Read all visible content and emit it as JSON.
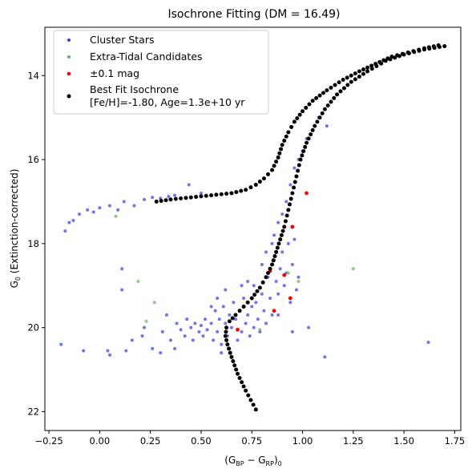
{
  "chart_data": {
    "type": "scatter",
    "title": "Isochrone Fitting (DM = 16.49)",
    "xlabel": {
      "base": "(G",
      "sub1": "BP",
      "mid": " − G",
      "sub2": "RP",
      "close": ")",
      "sub3": "0"
    },
    "ylabel": {
      "base": "G",
      "sub": "0",
      "rest": " (Extinction-corrected)"
    },
    "xlim": [
      -0.27,
      1.78
    ],
    "ylim": [
      22.45,
      12.85
    ],
    "y_inverted": true,
    "xticks": [
      -0.25,
      0.0,
      0.25,
      0.5,
      0.75,
      1.0,
      1.25,
      1.5,
      1.75
    ],
    "xtick_labels": [
      "−0.25",
      "0.00",
      "0.25",
      "0.50",
      "0.75",
      "1.00",
      "1.25",
      "1.50",
      "1.75"
    ],
    "yticks": [
      14,
      16,
      18,
      20,
      22
    ],
    "ytick_labels": [
      "14",
      "16",
      "18",
      "20",
      "22"
    ],
    "grid": false,
    "legend_position": "top-left",
    "legend": [
      {
        "label": "Cluster Stars",
        "color": "#3b3bf0"
      },
      {
        "label": "Extra-Tidal Candidates",
        "color": "#5cb85c"
      },
      {
        "label": "±0.1 mag",
        "color": "#ff0000"
      },
      {
        "label": "Best Fit Isochrone",
        "label2": "[Fe/H]=-1.80, Age=1.3e+10 yr",
        "color": "#000000"
      }
    ],
    "series": [
      {
        "name": "Cluster Stars",
        "color": "#3b3bf0",
        "points": [
          [
            -0.17,
            17.7
          ],
          [
            -0.15,
            17.5
          ],
          [
            -0.13,
            17.45
          ],
          [
            -0.1,
            17.3
          ],
          [
            -0.06,
            17.2
          ],
          [
            -0.03,
            17.25
          ],
          [
            0.0,
            17.15
          ],
          [
            0.05,
            17.1
          ],
          [
            0.09,
            17.2
          ],
          [
            0.12,
            17.0
          ],
          [
            0.17,
            17.1
          ],
          [
            0.22,
            16.95
          ],
          [
            0.26,
            16.9
          ],
          [
            0.3,
            16.92
          ],
          [
            0.34,
            16.88
          ],
          [
            0.37,
            16.85
          ],
          [
            0.44,
            16.6
          ],
          [
            0.5,
            16.8
          ],
          [
            0.11,
            18.6
          ],
          [
            0.11,
            19.1
          ],
          [
            -0.19,
            20.4
          ],
          [
            -0.08,
            20.55
          ],
          [
            0.04,
            20.55
          ],
          [
            0.05,
            20.65
          ],
          [
            0.13,
            20.55
          ],
          [
            0.16,
            20.3
          ],
          [
            0.21,
            20.2
          ],
          [
            0.22,
            20.0
          ],
          [
            0.26,
            20.5
          ],
          [
            0.3,
            20.6
          ],
          [
            0.31,
            20.1
          ],
          [
            0.33,
            19.7
          ],
          [
            0.35,
            20.3
          ],
          [
            0.37,
            20.5
          ],
          [
            0.38,
            19.9
          ],
          [
            0.4,
            20.05
          ],
          [
            0.42,
            20.2
          ],
          [
            0.43,
            19.8
          ],
          [
            0.45,
            20.0
          ],
          [
            0.46,
            20.3
          ],
          [
            0.47,
            19.9
          ],
          [
            0.49,
            20.1
          ],
          [
            0.5,
            19.95
          ],
          [
            0.51,
            20.2
          ],
          [
            0.52,
            19.8
          ],
          [
            0.53,
            20.05
          ],
          [
            0.55,
            19.9
          ],
          [
            0.56,
            20.3
          ],
          [
            0.57,
            19.6
          ],
          [
            0.58,
            20.1
          ],
          [
            0.59,
            19.8
          ],
          [
            0.6,
            20.4
          ],
          [
            0.6,
            20.6
          ],
          [
            0.61,
            19.5
          ],
          [
            0.62,
            19.9
          ],
          [
            0.63,
            20.2
          ],
          [
            0.64,
            19.7
          ],
          [
            0.65,
            20.0
          ],
          [
            0.66,
            19.4
          ],
          [
            0.67,
            19.8
          ],
          [
            0.68,
            20.3
          ],
          [
            0.69,
            19.6
          ],
          [
            0.7,
            20.1
          ],
          [
            0.71,
            19.3
          ],
          [
            0.72,
            19.9
          ],
          [
            0.73,
            19.7
          ],
          [
            0.74,
            20.2
          ],
          [
            0.75,
            19.5
          ],
          [
            0.76,
            20.0
          ],
          [
            0.77,
            19.4
          ],
          [
            0.78,
            19.8
          ],
          [
            0.79,
            20.1
          ],
          [
            0.8,
            19.2
          ],
          [
            0.81,
            19.6
          ],
          [
            0.82,
            19.9
          ],
          [
            0.83,
            18.8
          ],
          [
            0.84,
            19.3
          ],
          [
            0.85,
            19.7
          ],
          [
            0.86,
            18.4
          ],
          [
            0.87,
            18.9
          ],
          [
            0.88,
            19.2
          ],
          [
            0.89,
            18.6
          ],
          [
            0.9,
            18.2
          ],
          [
            0.91,
            19.0
          ],
          [
            0.92,
            18.7
          ],
          [
            0.93,
            18.0
          ],
          [
            0.94,
            19.4
          ],
          [
            0.95,
            18.5
          ],
          [
            0.96,
            17.9
          ],
          [
            0.97,
            19.1
          ],
          [
            0.98,
            18.8
          ],
          [
            1.03,
            20.0
          ],
          [
            1.11,
            20.7
          ],
          [
            1.62,
            20.35
          ],
          [
            0.86,
            17.8
          ],
          [
            0.88,
            17.5
          ],
          [
            0.9,
            17.3
          ],
          [
            0.92,
            17.0
          ],
          [
            0.94,
            16.6
          ],
          [
            0.96,
            16.2
          ],
          [
            0.98,
            16.0
          ],
          [
            1.0,
            15.8
          ],
          [
            1.02,
            15.5
          ],
          [
            1.05,
            15.3
          ],
          [
            1.08,
            15.0
          ],
          [
            1.12,
            15.2
          ],
          [
            0.55,
            19.5
          ],
          [
            0.58,
            19.3
          ],
          [
            0.62,
            19.1
          ],
          [
            0.64,
            20.5
          ],
          [
            0.7,
            19.0
          ],
          [
            0.73,
            18.9
          ],
          [
            0.76,
            19.0
          ],
          [
            0.8,
            18.5
          ],
          [
            0.82,
            18.2
          ],
          [
            0.85,
            18.0
          ],
          [
            0.88,
            19.7
          ],
          [
            0.95,
            20.1
          ]
        ]
      },
      {
        "name": "Extra-Tidal Candidates",
        "color": "#5cb85c",
        "points": [
          [
            0.08,
            17.35
          ],
          [
            0.19,
            18.9
          ],
          [
            0.27,
            19.4
          ],
          [
            0.23,
            19.85
          ],
          [
            0.79,
            20.05
          ],
          [
            0.93,
            18.7
          ],
          [
            0.98,
            18.9
          ],
          [
            1.25,
            18.6
          ]
        ]
      },
      {
        "name": "±0.1 mag",
        "color": "#ff0000",
        "points": [
          [
            0.68,
            20.05
          ],
          [
            0.86,
            19.6
          ],
          [
            0.91,
            18.75
          ],
          [
            0.94,
            19.3
          ],
          [
            0.95,
            17.6
          ],
          [
            1.02,
            16.8
          ],
          [
            0.84,
            18.65
          ]
        ]
      },
      {
        "name": "Best Fit Isochrone",
        "color": "#000000",
        "line": [
          [
            0.77,
            21.95
          ],
          [
            0.72,
            21.5
          ],
          [
            0.68,
            21.1
          ],
          [
            0.65,
            20.7
          ],
          [
            0.63,
            20.4
          ],
          [
            0.62,
            20.2
          ],
          [
            0.625,
            20.0
          ],
          [
            0.64,
            19.85
          ],
          [
            0.67,
            19.7
          ],
          [
            0.71,
            19.5
          ],
          [
            0.75,
            19.3
          ],
          [
            0.79,
            19.05
          ],
          [
            0.82,
            18.8
          ],
          [
            0.85,
            18.5
          ],
          [
            0.87,
            18.2
          ],
          [
            0.89,
            17.9
          ],
          [
            0.91,
            17.6
          ],
          [
            0.93,
            17.2
          ],
          [
            0.95,
            16.8
          ],
          [
            0.97,
            16.4
          ],
          [
            0.99,
            16.0
          ],
          [
            1.02,
            15.6
          ],
          [
            1.06,
            15.2
          ],
          [
            1.11,
            14.8
          ],
          [
            1.17,
            14.45
          ],
          [
            1.24,
            14.15
          ],
          [
            1.32,
            13.9
          ],
          [
            1.41,
            13.65
          ],
          [
            1.5,
            13.5
          ],
          [
            1.6,
            13.38
          ],
          [
            1.7,
            13.3
          ]
        ],
        "line2": [
          [
            0.28,
            17.0
          ],
          [
            0.35,
            16.95
          ],
          [
            0.45,
            16.9
          ],
          [
            0.55,
            16.85
          ],
          [
            0.65,
            16.8
          ],
          [
            0.72,
            16.72
          ],
          [
            0.77,
            16.6
          ],
          [
            0.81,
            16.45
          ],
          [
            0.85,
            16.25
          ],
          [
            0.88,
            15.95
          ],
          [
            0.9,
            15.65
          ],
          [
            0.93,
            15.35
          ],
          [
            0.96,
            15.1
          ],
          [
            1.0,
            14.85
          ],
          [
            1.05,
            14.6
          ],
          [
            1.12,
            14.35
          ],
          [
            1.2,
            14.1
          ],
          [
            1.28,
            13.9
          ],
          [
            1.36,
            13.72
          ],
          [
            1.44,
            13.55
          ],
          [
            1.52,
            13.45
          ],
          [
            1.6,
            13.35
          ],
          [
            1.67,
            13.28
          ]
        ]
      }
    ]
  }
}
